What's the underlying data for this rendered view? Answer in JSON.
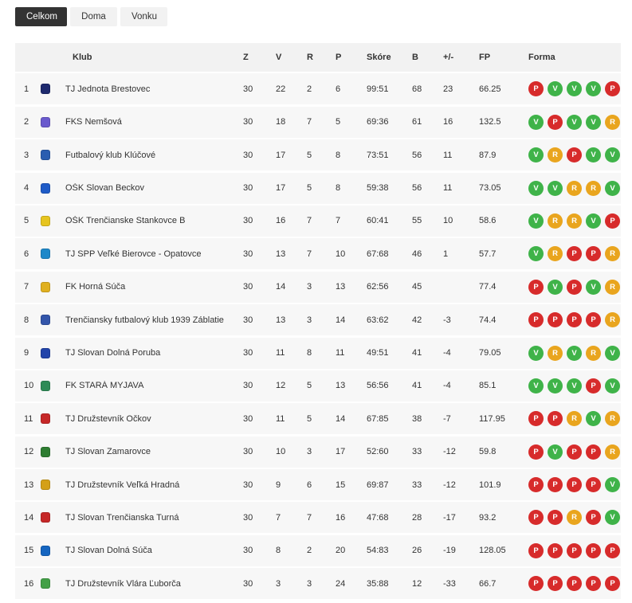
{
  "tabs": [
    "Celkom",
    "Doma",
    "Vonku"
  ],
  "active_tab": 0,
  "headers": {
    "club": "Klub",
    "z": "Z",
    "v": "V",
    "r": "R",
    "p": "P",
    "score": "Skóre",
    "b": "B",
    "pm": "+/-",
    "fp": "FP",
    "form": "Forma"
  },
  "form_colors": {
    "V": "#3fb349",
    "P": "#d72b2b",
    "R": "#e9a51e"
  },
  "rows": [
    {
      "pos": "1",
      "club": "TJ Jednota Brestovec",
      "z": "30",
      "v": "22",
      "r": "2",
      "p": "6",
      "score": "99:51",
      "b": "68",
      "pm": "23",
      "fp": "66.25",
      "form": [
        "P",
        "V",
        "V",
        "V",
        "P"
      ],
      "logo": "#1e2a6e"
    },
    {
      "pos": "2",
      "club": "FKS Nemšová",
      "z": "30",
      "v": "18",
      "r": "7",
      "p": "5",
      "score": "69:36",
      "b": "61",
      "pm": "16",
      "fp": "132.5",
      "form": [
        "V",
        "P",
        "V",
        "V",
        "R"
      ],
      "logo": "#6a5acd"
    },
    {
      "pos": "3",
      "club": "Futbalový klub Klúčové",
      "z": "30",
      "v": "17",
      "r": "5",
      "p": "8",
      "score": "73:51",
      "b": "56",
      "pm": "11",
      "fp": "87.9",
      "form": [
        "V",
        "R",
        "P",
        "V",
        "V"
      ],
      "logo": "#2a5db0"
    },
    {
      "pos": "4",
      "club": "OŠK Slovan Beckov",
      "z": "30",
      "v": "17",
      "r": "5",
      "p": "8",
      "score": "59:38",
      "b": "56",
      "pm": "11",
      "fp": "73.05",
      "form": [
        "V",
        "V",
        "R",
        "R",
        "V"
      ],
      "logo": "#1f5bc7"
    },
    {
      "pos": "5",
      "club": "OŠK Trenčianske Stankovce B",
      "z": "30",
      "v": "16",
      "r": "7",
      "p": "7",
      "score": "60:41",
      "b": "55",
      "pm": "10",
      "fp": "58.6",
      "form": [
        "V",
        "R",
        "R",
        "V",
        "P"
      ],
      "logo": "#e6c41f"
    },
    {
      "pos": "6",
      "club": "TJ SPP Veľké Bierovce - Opatovce",
      "z": "30",
      "v": "13",
      "r": "7",
      "p": "10",
      "score": "67:68",
      "b": "46",
      "pm": "1",
      "fp": "57.7",
      "form": [
        "V",
        "R",
        "P",
        "P",
        "R"
      ],
      "logo": "#1e88c9"
    },
    {
      "pos": "7",
      "club": "FK Horná Súča",
      "z": "30",
      "v": "14",
      "r": "3",
      "p": "13",
      "score": "62:56",
      "b": "45",
      "pm": "",
      "fp": "77.4",
      "form": [
        "P",
        "V",
        "P",
        "V",
        "R"
      ],
      "logo": "#e0b020"
    },
    {
      "pos": "8",
      "club": "Trenčiansky futbalový klub 1939 Záblatie",
      "z": "30",
      "v": "13",
      "r": "3",
      "p": "14",
      "score": "63:62",
      "b": "42",
      "pm": "-3",
      "fp": "74.4",
      "form": [
        "P",
        "P",
        "P",
        "P",
        "R"
      ],
      "logo": "#3355aa"
    },
    {
      "pos": "9",
      "club": "TJ Slovan Dolná Poruba",
      "z": "30",
      "v": "11",
      "r": "8",
      "p": "11",
      "score": "49:51",
      "b": "41",
      "pm": "-4",
      "fp": "79.05",
      "form": [
        "V",
        "R",
        "V",
        "R",
        "V"
      ],
      "logo": "#2244aa"
    },
    {
      "pos": "10",
      "club": "FK STARÁ MYJAVA",
      "z": "30",
      "v": "12",
      "r": "5",
      "p": "13",
      "score": "56:56",
      "b": "41",
      "pm": "-4",
      "fp": "85.1",
      "form": [
        "V",
        "V",
        "V",
        "P",
        "V"
      ],
      "logo": "#2e8b57"
    },
    {
      "pos": "11",
      "club": "TJ Družstevník Očkov",
      "z": "30",
      "v": "11",
      "r": "5",
      "p": "14",
      "score": "67:85",
      "b": "38",
      "pm": "-7",
      "fp": "117.95",
      "form": [
        "P",
        "P",
        "R",
        "V",
        "R"
      ],
      "logo": "#c62828"
    },
    {
      "pos": "12",
      "club": "TJ Slovan Zamarovce",
      "z": "30",
      "v": "10",
      "r": "3",
      "p": "17",
      "score": "52:60",
      "b": "33",
      "pm": "-12",
      "fp": "59.8",
      "form": [
        "P",
        "V",
        "P",
        "P",
        "R"
      ],
      "logo": "#2e7d32"
    },
    {
      "pos": "13",
      "club": "TJ Družstevník Veľká Hradná",
      "z": "30",
      "v": "9",
      "r": "6",
      "p": "15",
      "score": "69:87",
      "b": "33",
      "pm": "-12",
      "fp": "101.9",
      "form": [
        "P",
        "P",
        "P",
        "P",
        "V"
      ],
      "logo": "#d4a017"
    },
    {
      "pos": "14",
      "club": "TJ Slovan Trenčianska Turná",
      "z": "30",
      "v": "7",
      "r": "7",
      "p": "16",
      "score": "47:68",
      "b": "28",
      "pm": "-17",
      "fp": "93.2",
      "form": [
        "P",
        "P",
        "R",
        "P",
        "V"
      ],
      "logo": "#c62828"
    },
    {
      "pos": "15",
      "club": "TJ Slovan Dolná Súča",
      "z": "30",
      "v": "8",
      "r": "2",
      "p": "20",
      "score": "54:83",
      "b": "26",
      "pm": "-19",
      "fp": "128.05",
      "form": [
        "P",
        "P",
        "P",
        "P",
        "P"
      ],
      "logo": "#1565c0"
    },
    {
      "pos": "16",
      "club": "TJ Družstevník Vlára Ľuborča",
      "z": "30",
      "v": "3",
      "r": "3",
      "p": "24",
      "score": "35:88",
      "b": "12",
      "pm": "-33",
      "fp": "66.7",
      "form": [
        "P",
        "P",
        "P",
        "P",
        "P"
      ],
      "logo": "#43a047"
    }
  ]
}
